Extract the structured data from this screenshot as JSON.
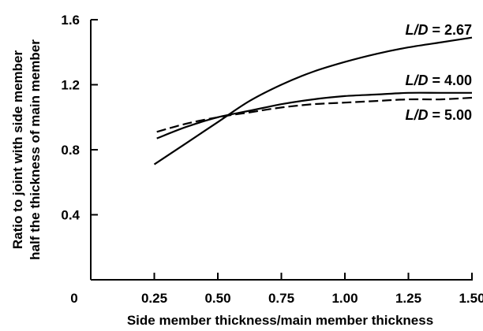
{
  "chart_data": {
    "type": "line",
    "xlabel": "Side member thickness/main member thickness",
    "ylabel_lines": [
      "Ratio to joint with side member",
      "half the thickness of main member"
    ],
    "xlim": [
      0,
      1.5
    ],
    "ylim": [
      0,
      1.6
    ],
    "xticks": [
      0.25,
      0.5,
      0.75,
      1.0,
      1.25,
      1.5
    ],
    "xtick_labels": [
      "0.25",
      "0.50",
      "0.75",
      "1.00",
      "1.25",
      "1.50"
    ],
    "yticks": [
      0.4,
      0.8,
      1.2,
      1.6
    ],
    "ytick_labels": [
      "0.4",
      "0.8",
      "1.2",
      "1.6"
    ],
    "origin_label": "0",
    "grid": false,
    "series": [
      {
        "name_prefix": "L/D",
        "name_value": "= 2.67",
        "style": "solid",
        "color": "#000000",
        "x": [
          0.25,
          0.375,
          0.5,
          0.625,
          0.75,
          0.875,
          1.0,
          1.125,
          1.25,
          1.375,
          1.5
        ],
        "y": [
          0.71,
          0.84,
          0.97,
          1.1,
          1.2,
          1.28,
          1.34,
          1.39,
          1.43,
          1.46,
          1.49
        ]
      },
      {
        "name_prefix": "L/D",
        "name_value": "= 4.00",
        "style": "solid",
        "color": "#000000",
        "x": [
          0.26,
          0.375,
          0.5,
          0.625,
          0.75,
          0.875,
          1.0,
          1.125,
          1.25,
          1.375,
          1.5
        ],
        "y": [
          0.87,
          0.94,
          1.0,
          1.04,
          1.08,
          1.11,
          1.13,
          1.14,
          1.15,
          1.15,
          1.15
        ]
      },
      {
        "name_prefix": "L/D",
        "name_value": "= 5.00",
        "style": "dashed",
        "color": "#000000",
        "x": [
          0.26,
          0.375,
          0.5,
          0.625,
          0.75,
          0.875,
          1.0,
          1.125,
          1.25,
          1.375,
          1.5
        ],
        "y": [
          0.91,
          0.96,
          1.0,
          1.03,
          1.06,
          1.08,
          1.09,
          1.1,
          1.11,
          1.11,
          1.12
        ]
      }
    ]
  }
}
